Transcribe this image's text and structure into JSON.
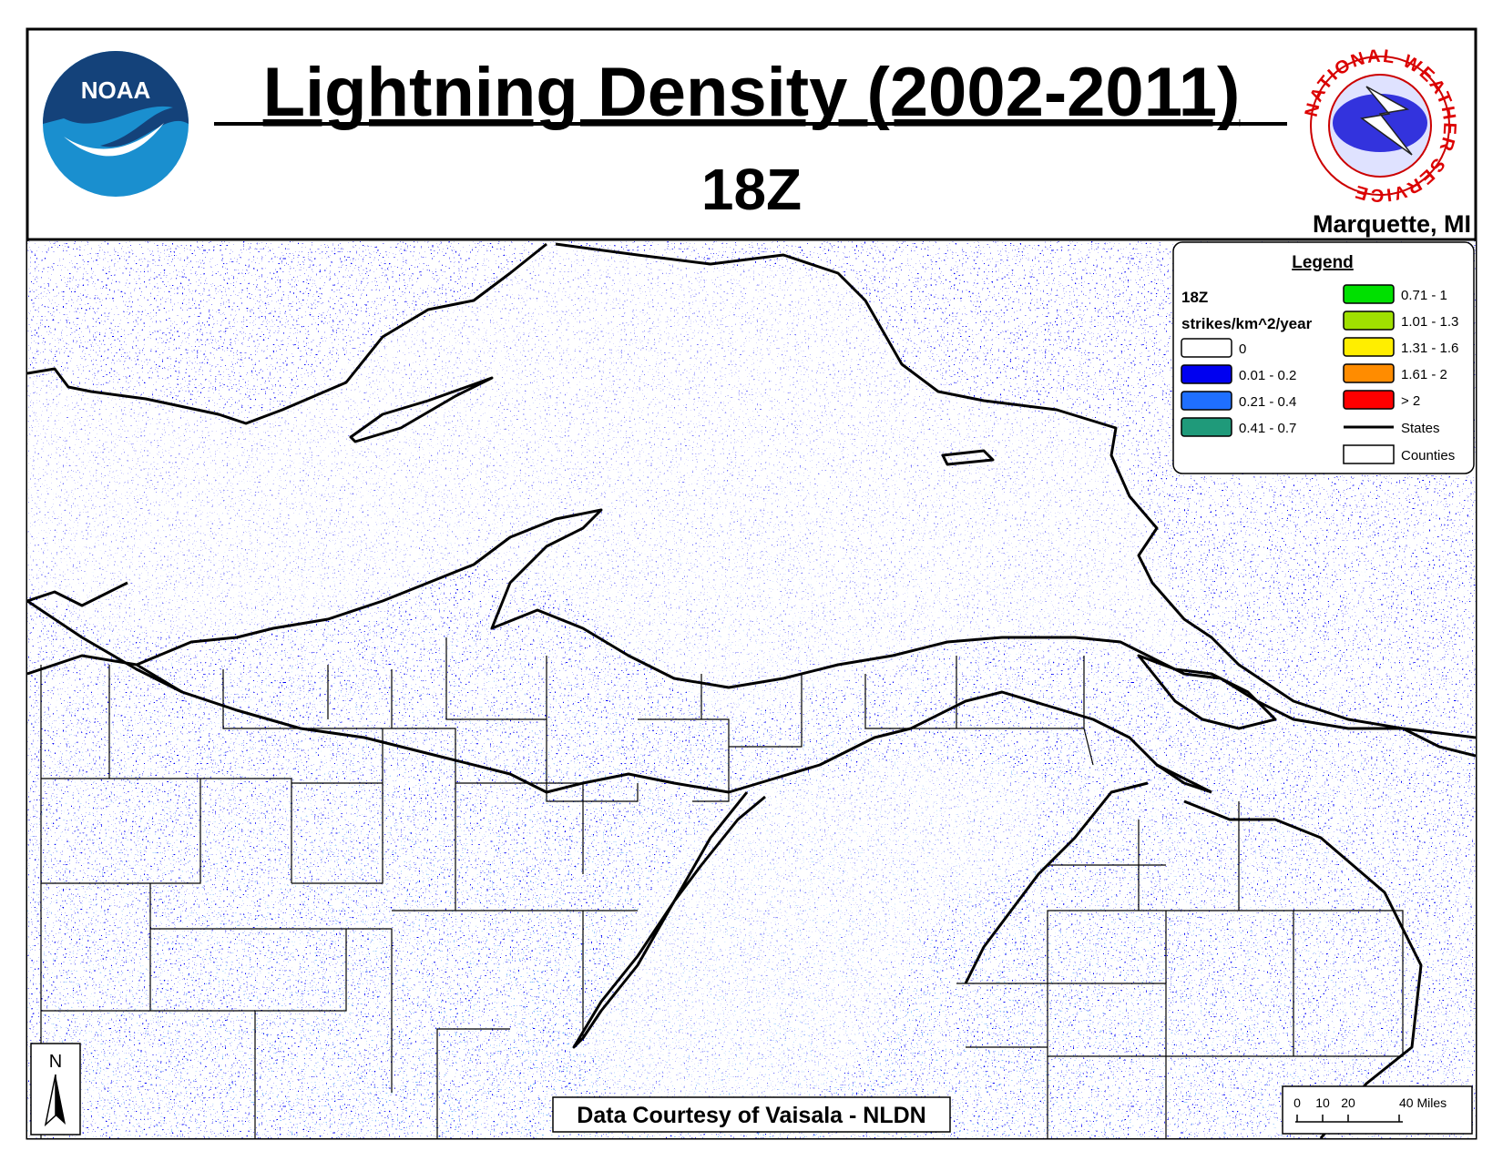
{
  "header": {
    "title": "Lightning Density (2002-2011)",
    "subtitle": "18Z",
    "office": "Marquette, MI",
    "noaa_logo": "NOAA",
    "nws_logo": "NATIONAL WEATHER SERVICE"
  },
  "legend": {
    "title": "Legend",
    "period": "18Z",
    "units": "strikes/km^2/year",
    "classes": [
      {
        "label": "0",
        "color": "#ffffff"
      },
      {
        "label": "0.01 - 0.2",
        "color": "#0000f0"
      },
      {
        "label": "0.21 - 0.4",
        "color": "#1f6fff"
      },
      {
        "label": "0.41 - 0.7",
        "color": "#1f9a7a"
      },
      {
        "label": "0.71 - 1",
        "color": "#00e000"
      },
      {
        "label": "1.01 - 1.3",
        "color": "#a0e000"
      },
      {
        "label": "1.31 - 1.6",
        "color": "#ffee00"
      },
      {
        "label": "1.61 - 2",
        "color": "#ff8c00"
      },
      {
        "label": "> 2",
        "color": "#ff0000"
      }
    ],
    "states": "States",
    "counties": "Counties"
  },
  "north_arrow": "N",
  "scale_bar": {
    "labels": [
      "0",
      "10",
      "20",
      "40 Miles"
    ]
  },
  "credit": "Data Courtesy of Vaisala - NLDN"
}
